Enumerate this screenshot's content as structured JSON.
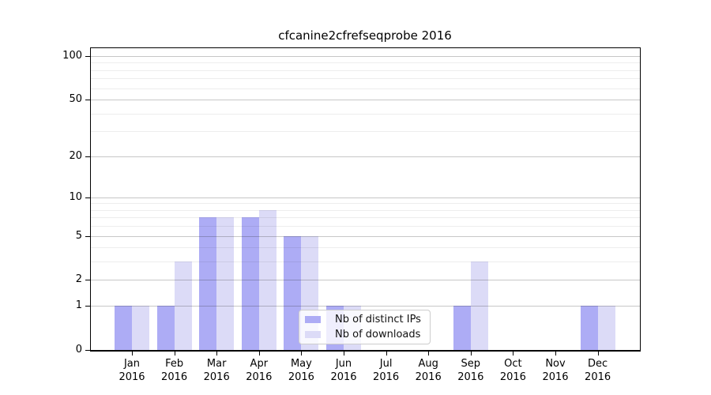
{
  "figure": {
    "title": "cfcanine2cfrefseqprobe 2016"
  },
  "chart_data": {
    "type": "bar",
    "title": "cfcanine2cfrefseqprobe 2016",
    "categories": [
      "Jan 2016",
      "Feb 2016",
      "Mar 2016",
      "Apr 2016",
      "May 2016",
      "Jun 2016",
      "Jul 2016",
      "Aug 2016",
      "Sep 2016",
      "Oct 2016",
      "Nov 2016",
      "Dec 2016"
    ],
    "series": [
      {
        "name": "Nb of distinct IPs",
        "color": "#adacf5",
        "values": [
          1,
          1,
          7,
          7,
          5,
          1,
          0,
          0,
          1,
          0,
          0,
          1
        ]
      },
      {
        "name": "Nb of downloads",
        "color": "#dcdbf7",
        "values": [
          1,
          3,
          7,
          8,
          5,
          1,
          0,
          0,
          3,
          0,
          0,
          1
        ]
      }
    ],
    "xlabel": "",
    "ylabel": "",
    "yscale": "log1p",
    "ylim": [
      0,
      115
    ],
    "y_tick_values": [
      0,
      1,
      2,
      5,
      10,
      20,
      50,
      100
    ],
    "y_tick_labels": [
      "0",
      "1",
      "2",
      "5",
      "10",
      "20",
      "50",
      "100"
    ],
    "y_minor_gridlines": [
      3,
      4,
      6,
      7,
      8,
      9,
      30,
      40,
      60,
      70,
      80,
      90
    ],
    "grid": "on",
    "legend_position": "lower center"
  },
  "colors": {
    "bar_distinct_ips": "#adacf5",
    "bar_downloads": "#dcdbf7",
    "grid_major": "rgba(30,30,30,0.25)",
    "grid_minor": "rgba(30,30,30,0.08)",
    "legend_border": "#cccccc",
    "spine": "#000000"
  }
}
